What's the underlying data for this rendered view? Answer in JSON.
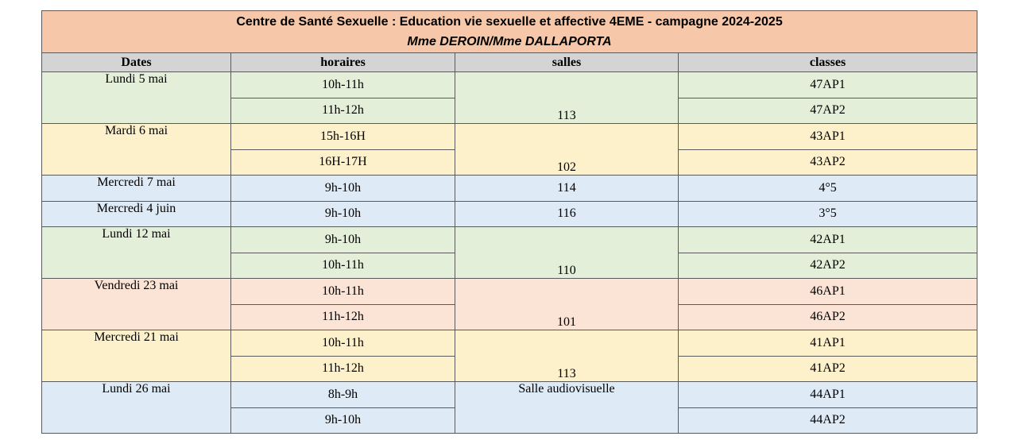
{
  "document": {
    "title": "Centre de Santé Sexuelle : Education vie sexuelle et affective 4EME - campagne 2024-2025",
    "subtitle": "Mme DEROIN/Mme DALLAPORTA"
  },
  "columns": {
    "dates": "Dates",
    "horaires": "horaires",
    "salles": "salles",
    "classes": "classes"
  },
  "groups": [
    {
      "date": "Lundi 5 mai",
      "salle": "113",
      "color": "#e3efd9",
      "slots": [
        {
          "horaire": "10h-11h",
          "classe": "47AP1"
        },
        {
          "horaire": "11h-12h",
          "classe": "47AP2"
        }
      ]
    },
    {
      "date": "Mardi 6 mai",
      "salle": "102",
      "color": "#fdf1cc",
      "slots": [
        {
          "horaire": "15h-16H",
          "classe": "43AP1"
        },
        {
          "horaire": "16H-17H",
          "classe": "43AP2"
        }
      ]
    },
    {
      "date": "Mercredi 7 mai",
      "salle": "114",
      "color": "#deeaf6",
      "slots": [
        {
          "horaire": "9h-10h",
          "classe": "4°5"
        }
      ]
    },
    {
      "date": "Mercredi 4 juin",
      "salle": "116",
      "color": "#deeaf6",
      "slots": [
        {
          "horaire": "9h-10h",
          "classe": "3°5"
        }
      ]
    },
    {
      "date": "Lundi 12 mai",
      "salle": "110",
      "color": "#e3efd9",
      "slots": [
        {
          "horaire": "9h-10h",
          "classe": "42AP1"
        },
        {
          "horaire": "10h-11h",
          "classe": "42AP2"
        }
      ]
    },
    {
      "date": "Vendredi 23 mai",
      "salle": "101",
      "color": "#fbe3d6",
      "slots": [
        {
          "horaire": "10h-11h",
          "classe": "46AP1"
        },
        {
          "horaire": "11h-12h",
          "classe": "46AP2"
        }
      ]
    },
    {
      "date": "Mercredi 21 mai",
      "salle": "113",
      "color": "#fdf1cc",
      "slots": [
        {
          "horaire": "10h-11h",
          "classe": "41AP1"
        },
        {
          "horaire": "11h-12h",
          "classe": "41AP2"
        }
      ]
    },
    {
      "date": "Lundi 26 mai",
      "salle": "Salle audiovisuelle",
      "color": "#deeaf6",
      "slots": [
        {
          "horaire": "8h-9h",
          "classe": "44AP1"
        },
        {
          "horaire": "9h-10h",
          "classe": "44AP2"
        }
      ]
    }
  ]
}
